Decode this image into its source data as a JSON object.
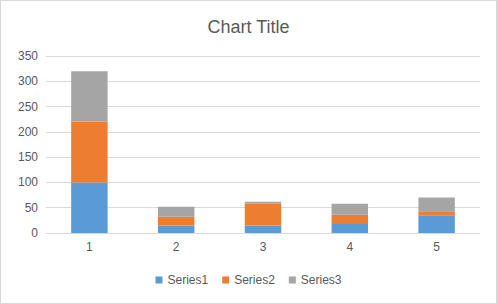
{
  "chart_data": {
    "type": "bar",
    "title": "Chart Title",
    "categories": [
      "1",
      "2",
      "3",
      "4",
      "5"
    ],
    "series": [
      {
        "name": "Series1",
        "color": "#5b9bd5",
        "values": [
          100,
          15,
          15,
          18,
          35
        ]
      },
      {
        "name": "Series2",
        "color": "#ed7d31",
        "values": [
          120,
          17,
          43,
          18,
          8
        ]
      },
      {
        "name": "Series3",
        "color": "#a5a5a5",
        "values": [
          100,
          20,
          4,
          22,
          27
        ]
      }
    ],
    "ylim": [
      0,
      350
    ],
    "yticks": [
      0,
      50,
      100,
      150,
      200,
      250,
      300,
      350
    ],
    "stacked": true,
    "grid": true,
    "legend": "bottom"
  }
}
